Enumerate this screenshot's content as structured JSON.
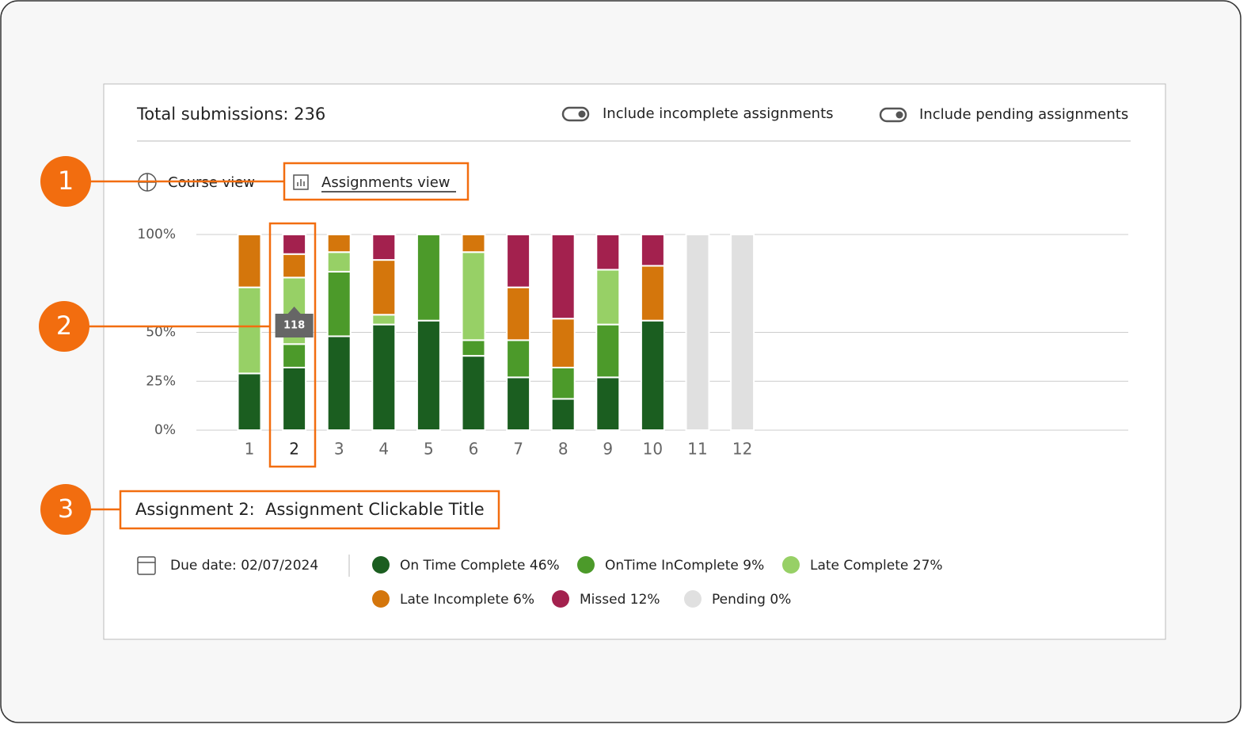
{
  "header": {
    "total": "Total submissions: 236",
    "toggles": [
      "Include incomplete assignments",
      "Include pending assignments"
    ]
  },
  "views": [
    "Course view",
    "Assignments view"
  ],
  "chart_data": {
    "type": "stacked-bar",
    "categories": [
      "1",
      "2",
      "3",
      "4",
      "5",
      "6",
      "7",
      "8",
      "9",
      "10",
      "11",
      "12"
    ],
    "ylim": [
      0,
      100
    ],
    "yticks": [
      {
        "value": 0,
        "label": "0%"
      },
      {
        "value": 25,
        "label": "25%"
      },
      {
        "value": 50,
        "label": "50%"
      },
      {
        "value": 100,
        "label": "100%"
      }
    ],
    "grid": true,
    "series": [
      {
        "name": "On Time Complete 46%",
        "color": "#1b5e20",
        "values": [
          29,
          32,
          48,
          54,
          56,
          38,
          27,
          16,
          27,
          56,
          0,
          0
        ]
      },
      {
        "name": "OnTime InComplete 9%",
        "color": "#4c9a2a",
        "values": [
          0,
          12,
          33,
          0,
          44,
          8,
          19,
          16,
          27,
          0,
          0,
          0
        ]
      },
      {
        "name": "Late Complete 27%",
        "color": "#97d066",
        "values": [
          44,
          34,
          10,
          5,
          0,
          45,
          0,
          0,
          28,
          0,
          0,
          0
        ]
      },
      {
        "name": "Late Incomplete 6%",
        "color": "#d4760c",
        "values": [
          27,
          12,
          9,
          28,
          0,
          9,
          27,
          25,
          0,
          28,
          0,
          0
        ]
      },
      {
        "name": "Missed 12%",
        "color": "#a3214e",
        "values": [
          0,
          10,
          0,
          13,
          0,
          0,
          27,
          43,
          18,
          16,
          0,
          0
        ]
      },
      {
        "name": "Pending 0%",
        "color": "#e0e0e0",
        "values": [
          0,
          0,
          0,
          0,
          0,
          0,
          0,
          0,
          0,
          0,
          100,
          100
        ]
      }
    ],
    "tooltip": "118"
  },
  "assignment": {
    "title": "Assignment 2:  Assignment Clickable Title",
    "due": "Due date: 02/07/2024"
  },
  "callouts": [
    "1",
    "2",
    "3"
  ]
}
